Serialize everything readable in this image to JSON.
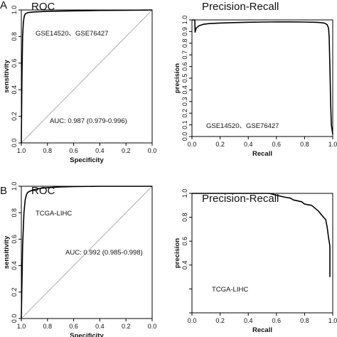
{
  "panel_labels": [
    "A",
    "B"
  ],
  "chart_data": [
    {
      "type": "line",
      "panel": "A",
      "title": "ROC",
      "xlabel": "Specificity",
      "ylabel": "sensitivity",
      "x_reversed": true,
      "xlim": [
        1.0,
        0.0
      ],
      "ylim": [
        0.0,
        1.0
      ],
      "xticks": [
        "1.0",
        "0.8",
        "0.6",
        "0.4",
        "0.2",
        "0.0"
      ],
      "yticks": [
        "0.0",
        "0.2",
        "0.4",
        "0.6",
        "0.8",
        "1.0"
      ],
      "series": [
        {
          "x": [
            1.0,
            0.995,
            0.99,
            0.985,
            0.98,
            0.975,
            0.97,
            0.96,
            0.95,
            0.9,
            0.8,
            0.6,
            0.4,
            0.2,
            0.05,
            0.0
          ],
          "y": [
            0.0,
            0.5,
            0.8,
            0.9,
            0.94,
            0.96,
            0.97,
            0.975,
            0.98,
            0.985,
            0.99,
            0.993,
            0.996,
            0.998,
            0.999,
            1.0
          ]
        }
      ],
      "diagonal": true,
      "dataset_label": "GSE14520、GSE76427",
      "auc_label": "AUC: 0.987 (0.979-0.996)",
      "grid": false
    },
    {
      "type": "line",
      "panel": "A",
      "title": "Precision-Recall",
      "xlabel": "Recall",
      "ylabel": "precision",
      "xlim": [
        0.0,
        1.0
      ],
      "ylim": [
        0.0,
        1.0
      ],
      "xticks": [
        "0.0",
        "0.2",
        "0.4",
        "0.6",
        "0.8",
        "1.0"
      ],
      "yticks": [
        "0.0",
        "0.1",
        "0.2",
        "0.3",
        "0.4",
        "0.5",
        "0.6",
        "0.7",
        "0.8",
        "0.9",
        "1.0"
      ],
      "series": [
        {
          "x": [
            0.0,
            0.02,
            0.022,
            0.03,
            0.05,
            0.08,
            0.12,
            0.2,
            0.3,
            0.4,
            0.5,
            0.6,
            0.7,
            0.8,
            0.87,
            0.9,
            0.94,
            0.96,
            0.97,
            0.975,
            0.98,
            0.985,
            0.99,
            1.0
          ],
          "y": [
            1.0,
            1.0,
            0.895,
            0.93,
            0.95,
            0.962,
            0.968,
            0.973,
            0.977,
            0.98,
            0.982,
            0.983,
            0.983,
            0.982,
            0.98,
            0.978,
            0.973,
            0.96,
            0.93,
            0.85,
            0.6,
            0.3,
            0.1,
            0.02
          ]
        }
      ],
      "dataset_label": "GSE14520、GSE76427",
      "grid": false
    },
    {
      "type": "line",
      "panel": "B",
      "title": "ROC",
      "xlabel": "Specificity",
      "ylabel": "sensitivity",
      "x_reversed": true,
      "xlim": [
        1.0,
        0.0
      ],
      "ylim": [
        0.0,
        1.0
      ],
      "xticks": [
        "1.0",
        "0.8",
        "0.6",
        "0.4",
        "0.2",
        "0.0"
      ],
      "yticks": [
        "0.0",
        "0.2",
        "0.4",
        "0.6",
        "0.8",
        "1.0"
      ],
      "series": [
        {
          "x": [
            1.0,
            0.99,
            0.98,
            0.97,
            0.96,
            0.95,
            0.93,
            0.9,
            0.85,
            0.8,
            0.7,
            0.6,
            0.4,
            0.2,
            0.0
          ],
          "y": [
            0.0,
            0.55,
            0.8,
            0.9,
            0.94,
            0.955,
            0.965,
            0.975,
            0.985,
            0.99,
            0.995,
            0.998,
            1.0,
            1.0,
            1.0
          ]
        }
      ],
      "diagonal": true,
      "dataset_label": "TCGA-LIHC",
      "auc_label": "AUC: 0.992 (0.985-0.998)",
      "grid": false
    },
    {
      "type": "line",
      "panel": "B",
      "title": "Precision-Recall",
      "xlabel": "Recall",
      "ylabel": "precision",
      "xlim": [
        0.0,
        1.0
      ],
      "ylim": [
        0.0,
        1.0
      ],
      "xticks": [
        "0.0",
        "0.2",
        "0.4",
        "0.6",
        "0.8",
        "1.0"
      ],
      "yticks": [
        "0.0",
        "0.2",
        "0.4",
        "0.6",
        "0.8",
        "1.0"
      ],
      "series": [
        {
          "x": [
            0.0,
            0.55,
            0.6,
            0.65,
            0.7,
            0.72,
            0.78,
            0.8,
            0.85,
            0.88,
            0.9,
            0.92,
            0.95,
            0.96,
            0.97,
            0.98,
            0.98
          ],
          "y": [
            1.0,
            1.0,
            0.985,
            0.97,
            0.96,
            0.945,
            0.93,
            0.91,
            0.9,
            0.87,
            0.85,
            0.82,
            0.78,
            0.72,
            0.63,
            0.56,
            0.3
          ]
        }
      ],
      "dataset_label": "TCGA-LIHC",
      "grid": false
    }
  ]
}
